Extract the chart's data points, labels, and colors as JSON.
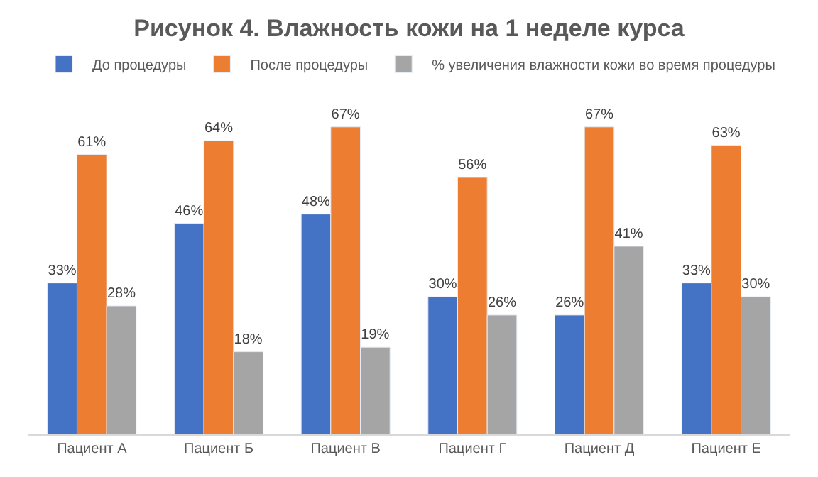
{
  "chart_data": {
    "type": "bar",
    "title": "Рисунок 4. Влажность кожи на 1 неделе курса",
    "categories": [
      "Пациент А",
      "Пациент Б",
      "Пациент В",
      "Пациент Г",
      "Пациент Д",
      "Пациент Е"
    ],
    "series": [
      {
        "name": "До процедуры",
        "color": "#4472c4",
        "values": [
          33,
          46,
          48,
          30,
          26,
          33
        ],
        "value_labels": [
          "33%",
          "46%",
          "48%",
          "30%",
          "26%",
          "33%"
        ]
      },
      {
        "name": "После процедуры",
        "color": "#ed7d31",
        "values": [
          61,
          64,
          67,
          56,
          67,
          63
        ],
        "value_labels": [
          "61%",
          "64%",
          "67%",
          "56%",
          "67%",
          "63%"
        ]
      },
      {
        "name": "% увеличения влажности кожи во время процедуры",
        "color": "#a5a5a5",
        "values": [
          28,
          18,
          19,
          26,
          41,
          30
        ],
        "value_labels": [
          "28%",
          "18%",
          "19%",
          "26%",
          "41%",
          "30%"
        ]
      }
    ],
    "legend": "top"
  }
}
